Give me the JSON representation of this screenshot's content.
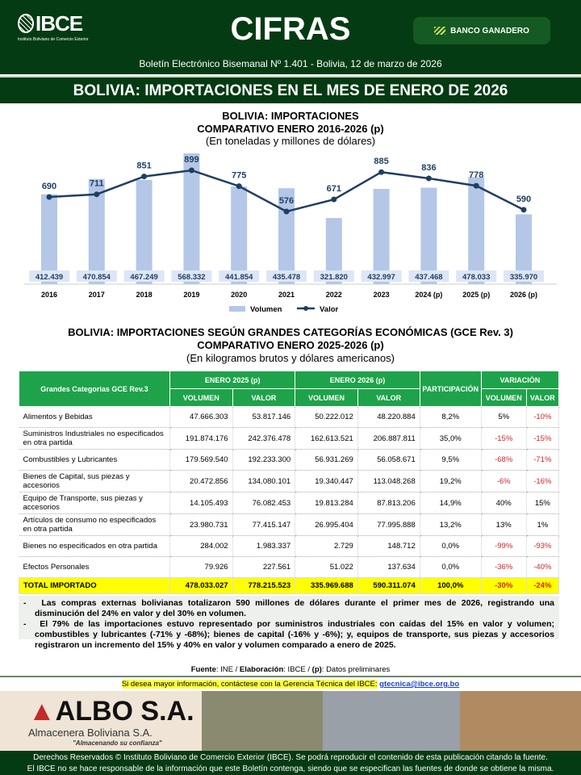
{
  "header": {
    "logo_text": "IBCE",
    "logo_subtitle": "Instituto Boliviano de Comercio Exterior",
    "title": "CIFRAS",
    "sponsor": "BANCO GANADERO",
    "subtitle": "Boletín Electrónico Bisemanal Nº 1.401 - Bolivia, 12 de marzo de 2026"
  },
  "banner": "BOLIVIA: IMPORTACIONES EN EL MES DE ENERO DE 2026",
  "chart_data": {
    "type": "bar+line",
    "title": "BOLIVIA: IMPORTACIONES",
    "subtitle": "COMPARATIVO ENERO 2016-2026 (p)",
    "units": "(En toneladas y millones de dólares)",
    "categories": [
      "2016",
      "2017",
      "2018",
      "2019",
      "2020",
      "2021",
      "2022",
      "2023",
      "2024 (p)",
      "2025 (p)",
      "2026 (p)"
    ],
    "series": [
      {
        "name": "Volumen",
        "type": "bar",
        "color": "#b4c7e7",
        "values": [
          412439,
          470854,
          467249,
          568332,
          441854,
          435478,
          321820,
          432997,
          437468,
          478033,
          335970
        ],
        "labels": [
          "412.439",
          "470.854",
          "467.249",
          "568.332",
          "441.854",
          "435.478",
          "321.820",
          "432.997",
          "437.468",
          "478.033",
          "335.970"
        ]
      },
      {
        "name": "Valor",
        "type": "line",
        "color": "#1f3f63",
        "values": [
          690,
          711,
          851,
          899,
          775,
          576,
          671,
          885,
          836,
          778,
          590
        ]
      }
    ],
    "legend": "bottom",
    "grid": false
  },
  "table": {
    "title": "BOLIVIA: IMPORTACIONES SEGÚN GRANDES CATEGORÍAS ECONÓMICAS (GCE Rev. 3)",
    "subtitle": "COMPARATIVO ENERO 2025-2026 (p)",
    "units": "(En kilogramos brutos y dólares americanos)",
    "headers": {
      "cat": "Grandes Categorias GCE Rev.3",
      "g1": "ENERO 2025 (p)",
      "g2": "ENERO 2026 (p)",
      "part": "PARTICIPACIÓN",
      "var": "VARIACIÓN",
      "vol": "VOLUMEN",
      "val": "VALOR"
    },
    "rows": [
      [
        "Alimentos y Bebidas",
        "47.666.303",
        "53.817.146",
        "50.222.012",
        "48.220.884",
        "8,2%",
        "5%",
        "-10%"
      ],
      [
        "Suministros Industriales no especificados en otra partida",
        "191.874.176",
        "242.376.478",
        "162.613.521",
        "206.887.811",
        "35,0%",
        "-15%",
        "-15%"
      ],
      [
        "Combustibles y Lubricantes",
        "179.569.540",
        "192.233.300",
        "56.931.269",
        "56.058.671",
        "9,5%",
        "-68%",
        "-71%"
      ],
      [
        "Bienes de Capital, sus piezas y accesorios",
        "20.472.856",
        "134.080.101",
        "19.340.447",
        "113.048.268",
        "19,2%",
        "-6%",
        "-16%"
      ],
      [
        "Equipo de Transporte, sus piezas y accesorios",
        "14.105.493",
        "76.082.453",
        "19.813.284",
        "87.813.206",
        "14,9%",
        "40%",
        "15%"
      ],
      [
        "Artículos de consumo no especificados en otra partida",
        "23.980.731",
        "77.415.147",
        "26.995.404",
        "77.995.888",
        "13,2%",
        "13%",
        "1%"
      ],
      [
        "Bienes no especificados en otra partida",
        "284.002",
        "1.983.337",
        "2.729",
        "148.712",
        "0,0%",
        "-99%",
        "-93%"
      ],
      [
        "Efectos Personales",
        "79.926",
        "227.561",
        "51.022",
        "137.634",
        "0,0%",
        "-36%",
        "-40%"
      ]
    ],
    "total": [
      "TOTAL IMPORTADO",
      "478.033.027",
      "778.215.523",
      "335.969.688",
      "590.311.074",
      "100,0%",
      "-30%",
      "-24%"
    ]
  },
  "notes": [
    "Las compras externas bolivianas totalizaron 590 millones de dólares durante el primer mes de 2026, registrando una disminución del 24% en valor y del 30% en volumen.",
    "El 79% de las importaciones estuvo representado por suministros industriales con caídas del 15% en valor y volumen; combustibles y lubricantes (-71% y -68%); bienes de capital (-16% y -6%); y, equipos de transporte, sus piezas y accesorios registraron un incremento del 15% y 40% en valor y volumen comparado a enero de 2025."
  ],
  "source": {
    "l1": "Fuente",
    "t1": ":  INE / ",
    "l2": "Elaboración",
    "t2": ": IBCE / ",
    "l3": "(p)",
    "t3": ": Datos preliminares"
  },
  "info": {
    "text": "Si desea mayor información, contáctese con la Gerencia Técnica del IBCE:",
    "email": "gtecnica@ibce.org.bo"
  },
  "ad": {
    "brand": "ALBO S.A.",
    "name": "Almacenera Boliviana S.A.",
    "tagline": "\"Almacenando su confianza\""
  },
  "footer": {
    "l1": "Derechos Reservados © Instituto Boliviano de Comercio Exterior (IBCE). Se podrá reproducir el contenido de esta publicación citando la fuente.",
    "l2": "El IBCE no se hace responsable de la información que este Boletín contenga, siendo que se especifican las fuentes de donde se obtiene la misma."
  }
}
